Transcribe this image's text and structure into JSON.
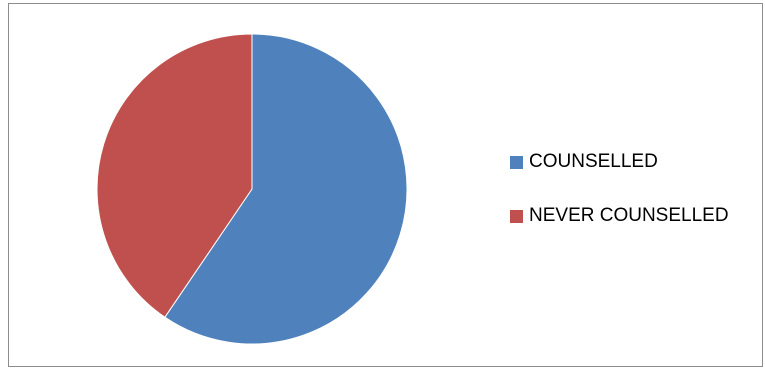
{
  "chart_data": {
    "type": "pie",
    "title": "",
    "slices": [
      {
        "label": "COUNSELLED",
        "value": 59.5,
        "color": "#4F81BD"
      },
      {
        "label": "NEVER COUNSELLED",
        "value": 40.5,
        "color": "#C0504D"
      }
    ],
    "start_angle_deg": 0,
    "direction": "clockwise",
    "legend_position": "right"
  },
  "legend": {
    "items": [
      {
        "label": "COUNSELLED",
        "color": "#4F81BD"
      },
      {
        "label": "NEVER COUNSELLED",
        "color": "#C0504D"
      }
    ]
  }
}
